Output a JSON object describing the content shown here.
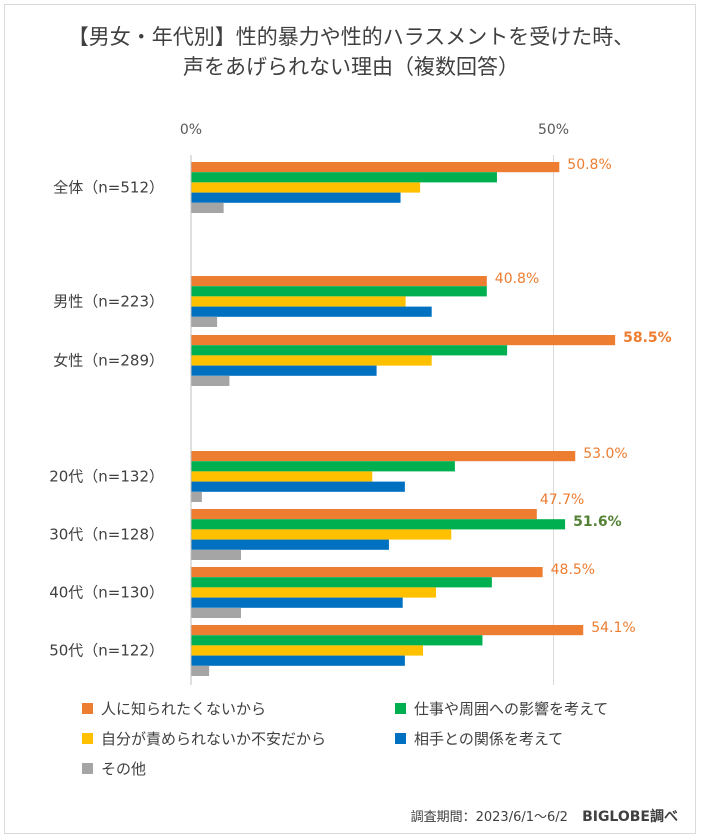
{
  "chart_data": {
    "type": "bar",
    "orientation": "horizontal",
    "title": "【男女・年代別】性的暴力や性的ハラスメントを受けた時、",
    "subtitle": "声をあげられない理由（複数回答）",
    "axis_ticks": [
      "0%",
      "50%"
    ],
    "xlim": [
      0,
      60
    ],
    "categories": [
      "全体（n=512）",
      "男性（n=223）",
      "女性（n=289）",
      "20代（n=132）",
      "30代（n=128）",
      "40代（n=130）",
      "50代（n=122）"
    ],
    "series": [
      {
        "name": "人に知られたくないから",
        "color": "#ED7D31",
        "values": [
          50.8,
          40.8,
          58.5,
          53.0,
          47.7,
          48.5,
          54.1
        ]
      },
      {
        "name": "仕事や周囲への影響を考えて",
        "color": "#00B050",
        "values": [
          42.2,
          40.8,
          43.6,
          36.4,
          51.6,
          41.5,
          40.2
        ]
      },
      {
        "name": "自分が責められないか不安だから",
        "color": "#FFC000",
        "values": [
          31.6,
          29.6,
          33.2,
          25.0,
          35.9,
          33.8,
          32.0
        ]
      },
      {
        "name": "相手との関係を考えて",
        "color": "#0070C0",
        "values": [
          28.9,
          33.2,
          25.6,
          29.5,
          27.3,
          29.2,
          29.5
        ]
      },
      {
        "name": "その他",
        "color": "#A5A5A5",
        "values": [
          4.5,
          3.6,
          5.3,
          1.5,
          6.9,
          6.9,
          2.5
        ]
      }
    ],
    "data_labels": [
      {
        "category_index": 0,
        "series_index": 0,
        "text": "50.8%",
        "color": "#ED7D31",
        "bold": false
      },
      {
        "category_index": 1,
        "series_index": 0,
        "text": "40.8%",
        "color": "#ED7D31",
        "bold": false
      },
      {
        "category_index": 2,
        "series_index": 0,
        "text": "58.5%",
        "color": "#ED7D31",
        "bold": true
      },
      {
        "category_index": 3,
        "series_index": 0,
        "text": "53.0%",
        "color": "#ED7D31",
        "bold": false
      },
      {
        "category_index": 4,
        "series_index": 0,
        "text": "47.7%",
        "color": "#ED7D31",
        "bold": false
      },
      {
        "category_index": 4,
        "series_index": 1,
        "text": "51.6%",
        "color": "#548235",
        "bold": true
      },
      {
        "category_index": 5,
        "series_index": 0,
        "text": "48.5%",
        "color": "#ED7D31",
        "bold": false
      },
      {
        "category_index": 6,
        "series_index": 0,
        "text": "54.1%",
        "color": "#ED7D31",
        "bold": false
      }
    ],
    "legend_position": "bottom"
  },
  "footer": {
    "note": "調査期間：2023/6/1～6/2",
    "brand": "BIGLOBE調べ"
  }
}
